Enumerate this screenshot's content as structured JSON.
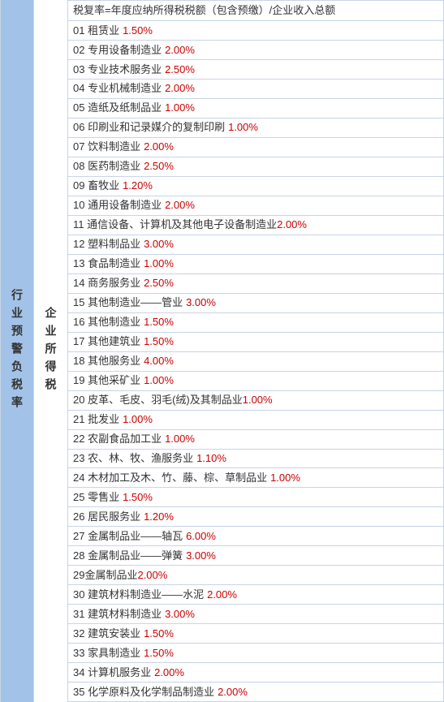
{
  "leftLabel": "行业预警负税率",
  "midLabel": "企业所得税",
  "headerText": "税复率=年度应纳所得税税额（包含预缴）/企业收入总额",
  "percentColor": "#cc0000",
  "textColor": "#333333",
  "leftBg": "#a3c2e8",
  "borderColor": "#c8d4e6",
  "rows": [
    {
      "num": "01",
      "label": "租赁业",
      "percent": "1.50%",
      "space": true
    },
    {
      "num": "02",
      "label": "专用设备制造业",
      "percent": "2.00%",
      "space": true
    },
    {
      "num": "03",
      "label": "专业技术服务业",
      "percent": "2.50%",
      "space": true
    },
    {
      "num": "04",
      "label": "专业机械制造业",
      "percent": "2.00%",
      "space": true
    },
    {
      "num": "05",
      "label": "造纸及纸制品业",
      "percent": "1.00%",
      "space": true
    },
    {
      "num": "06",
      "label": "印刷业和记录媒介的复制印刷",
      "percent": "1.00%",
      "space": true
    },
    {
      "num": "07",
      "label": "饮料制造业",
      "percent": "2.00%",
      "space": true
    },
    {
      "num": "08",
      "label": "医药制造业",
      "percent": "2.50%",
      "space": true
    },
    {
      "num": "09",
      "label": "畜牧业",
      "percent": "1.20%",
      "space": true
    },
    {
      "num": "10",
      "label": "通用设备制造业",
      "percent": "2.00%",
      "space": true
    },
    {
      "num": "11",
      "label": "通信设备、计算机及其他电子设备制造业",
      "percent": "2.00%",
      "space": false
    },
    {
      "num": "12",
      "label": "塑料制品业",
      "percent": "3.00%",
      "space": true
    },
    {
      "num": "13",
      "label": "食品制造业",
      "percent": "1.00%",
      "space": true
    },
    {
      "num": "14",
      "label": "商务服务业",
      "percent": "2.50%",
      "space": true
    },
    {
      "num": "15",
      "label": "其他制造业——管业",
      "percent": "3.00%",
      "space": true
    },
    {
      "num": "16",
      "label": "其他制造业",
      "percent": "1.50%",
      "space": true
    },
    {
      "num": "17",
      "label": "其他建筑业",
      "percent": "1.50%",
      "space": true
    },
    {
      "num": "18",
      "label": "其他服务业",
      "percent": "4.00%",
      "space": true
    },
    {
      "num": "19",
      "label": "其他采矿业",
      "percent": "1.00%",
      "space": true
    },
    {
      "num": "20",
      "label": "皮革、毛皮、羽毛(绒)及其制品业",
      "percent": "1.00%",
      "space": false
    },
    {
      "num": "21",
      "label": "批发业",
      "percent": "1.00%",
      "space": true
    },
    {
      "num": "22",
      "label": "农副食品加工业",
      "percent": "1.00%",
      "space": true
    },
    {
      "num": "23",
      "label": "农、林、牧、渔服务业",
      "percent": "1.10%",
      "space": true
    },
    {
      "num": "24",
      "label": "木材加工及木、竹、藤、棕、草制品业",
      "percent": "1.00%",
      "space": true
    },
    {
      "num": "25",
      "label": "零售业",
      "percent": "1.50%",
      "space": true
    },
    {
      "num": "26",
      "label": "居民服务业",
      "percent": "1.20%",
      "space": true
    },
    {
      "num": "27",
      "label": "金属制品业——轴瓦",
      "percent": "6.00%",
      "space": true
    },
    {
      "num": "28",
      "label": "金属制品业——弹簧",
      "percent": "3.00%",
      "space": true
    },
    {
      "num": "29",
      "label": "金属制品业",
      "percent": "2.00%",
      "space": false,
      "nonumspace": true
    },
    {
      "num": "30",
      "label": "建筑材料制造业——水泥",
      "percent": "2.00%",
      "space": true
    },
    {
      "num": "31",
      "label": "建筑材料制造业",
      "percent": "3.00%",
      "space": true
    },
    {
      "num": "32",
      "label": "建筑安装业",
      "percent": "1.50%",
      "space": true
    },
    {
      "num": "33",
      "label": "家具制造业",
      "percent": "1.50%",
      "space": true
    },
    {
      "num": "34",
      "label": "计算机服务业",
      "percent": "2.00%",
      "space": true
    },
    {
      "num": "35",
      "label": "化学原料及化学制品制造业",
      "percent": "2.00%",
      "space": true
    }
  ]
}
